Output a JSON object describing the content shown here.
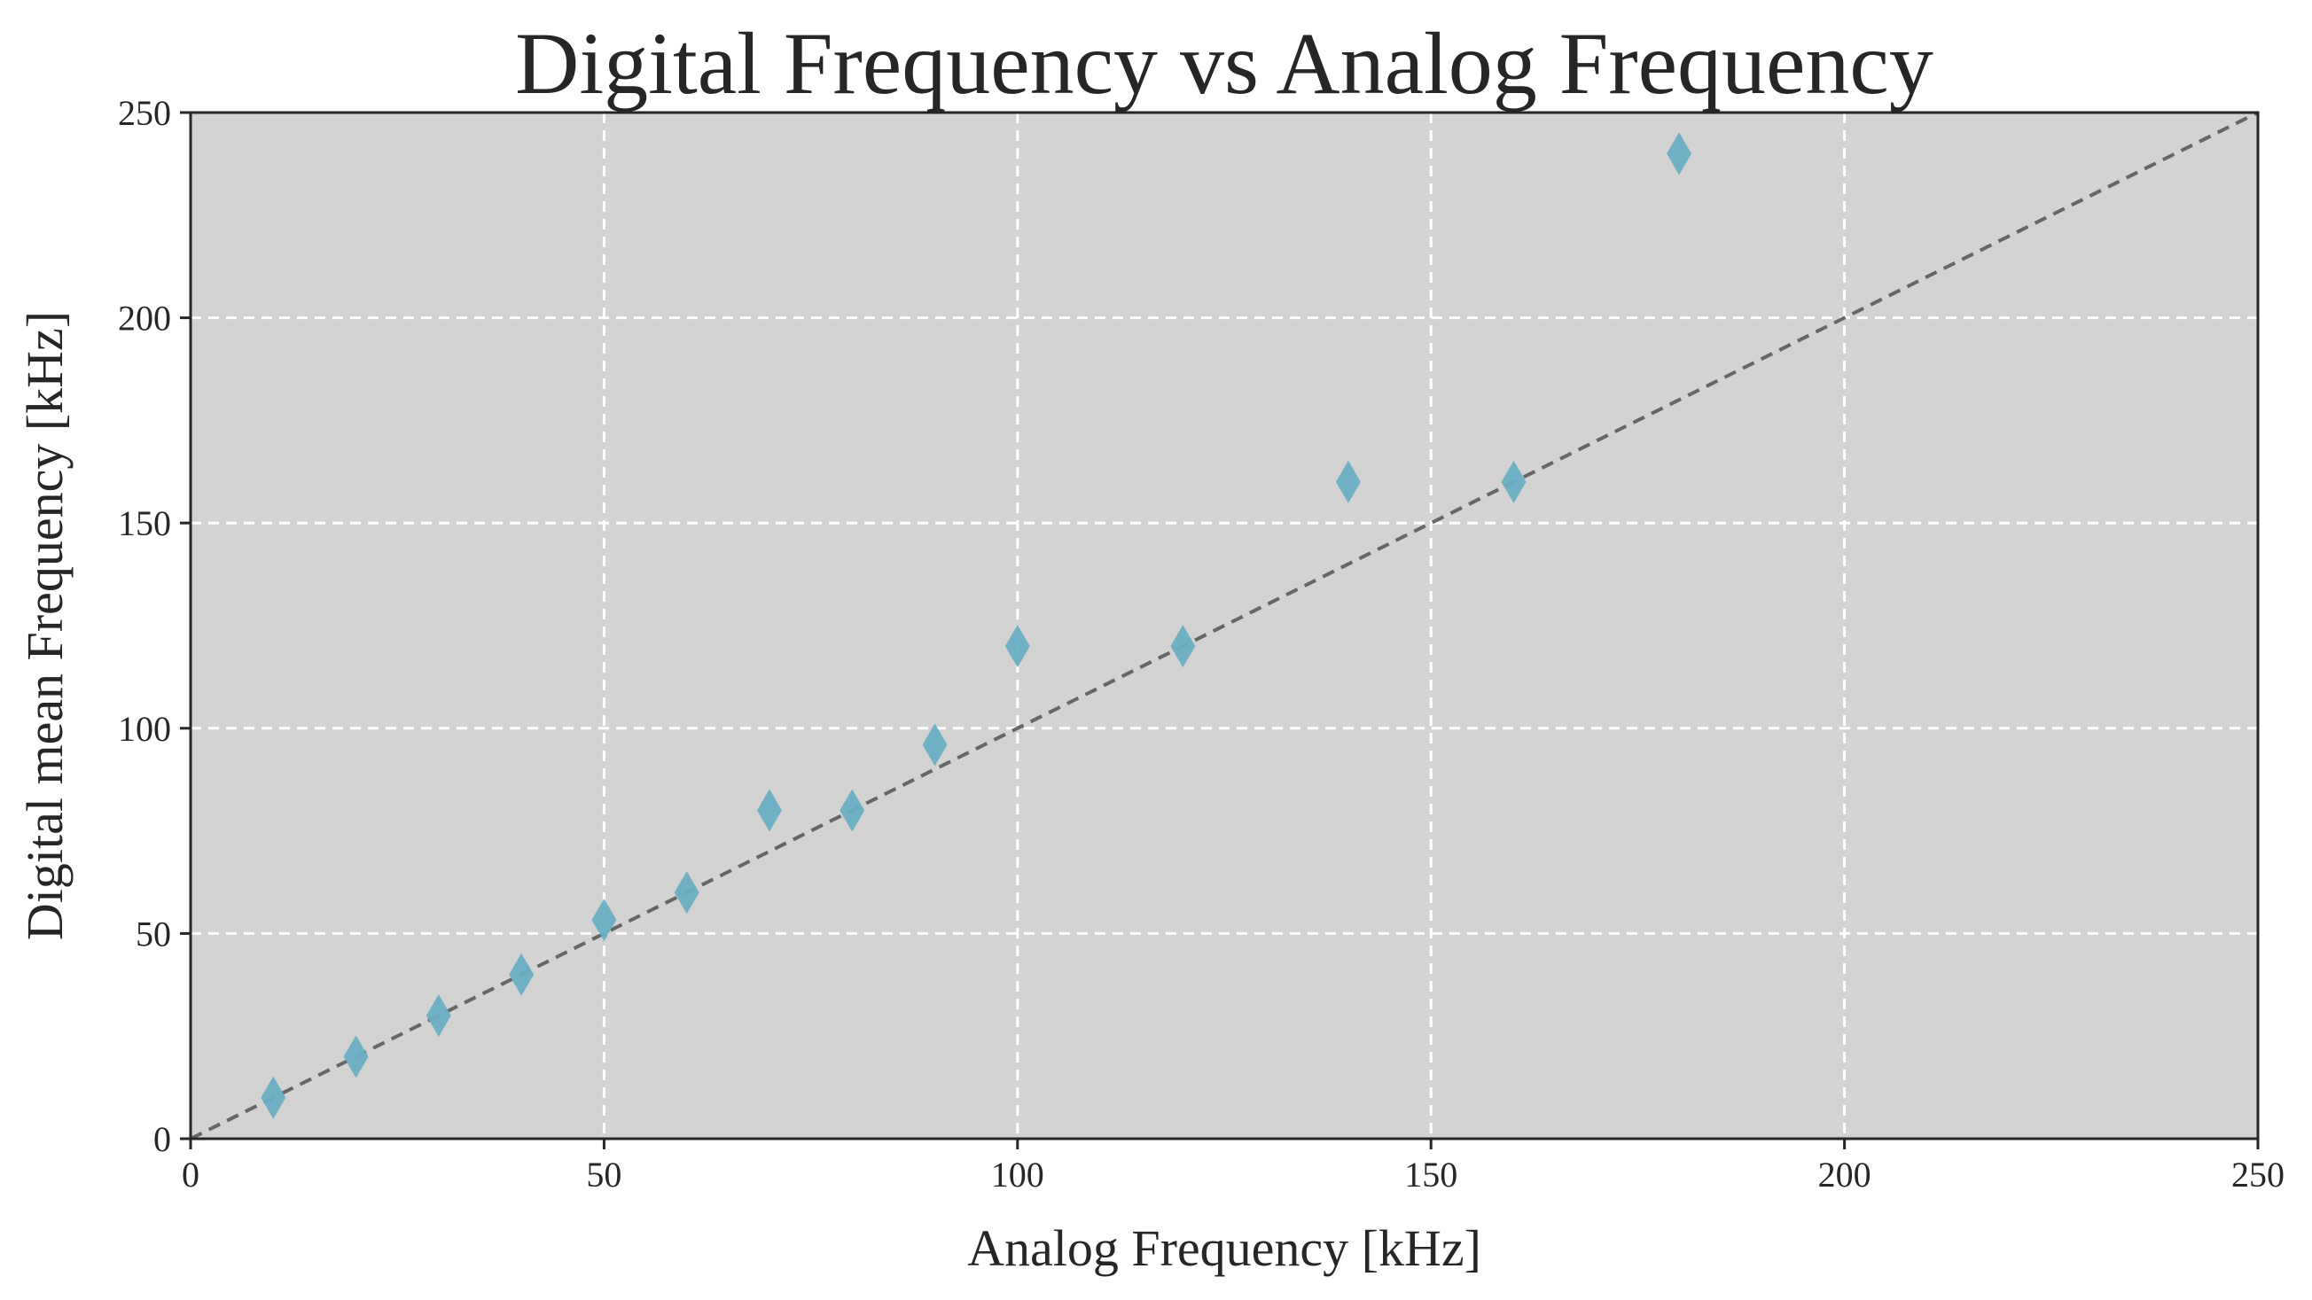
{
  "chart_data": {
    "type": "scatter",
    "title": "Digital Frequency vs Analog Frequency",
    "xlabel": "Analog Frequency [kHz]",
    "ylabel": "Digital mean Frequency [kHz]",
    "xlim": [
      0,
      250
    ],
    "ylim": [
      0,
      250
    ],
    "xticks": [
      "0",
      "50",
      "100",
      "150",
      "200",
      "250"
    ],
    "yticks": [
      "0",
      "50",
      "100",
      "150",
      "200",
      "250"
    ],
    "grid": true,
    "reference_line": {
      "x": [
        0,
        250
      ],
      "y": [
        0,
        250
      ],
      "style": "dashed",
      "color": "#666666"
    },
    "series": [
      {
        "marker": "diamond",
        "color": "#6aaec4",
        "x": [
          10,
          20,
          30,
          40,
          50,
          60,
          70,
          80,
          90,
          100,
          120,
          140,
          160,
          180
        ],
        "y": [
          10,
          20,
          30,
          40,
          53.3,
          60,
          80,
          80,
          96,
          120,
          120,
          160,
          160,
          240
        ]
      }
    ]
  },
  "colors": {
    "plot_background": "#d3d3d3",
    "grid": "#ffffff",
    "axes": "#262626"
  }
}
